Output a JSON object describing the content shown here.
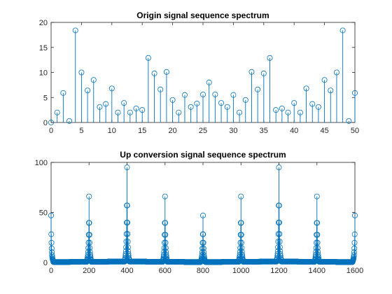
{
  "chart_data": [
    {
      "type": "stem",
      "title": "Origin signal sequence spectrum",
      "xlabel": "",
      "ylabel": "",
      "xlim": [
        0,
        50
      ],
      "ylim": [
        0,
        20
      ],
      "xticks": [
        0,
        5,
        10,
        15,
        20,
        25,
        30,
        35,
        40,
        45,
        50
      ],
      "yticks": [
        0,
        5,
        10,
        15,
        20
      ],
      "grid": false,
      "color": "#0072BD",
      "x": [
        0,
        1,
        2,
        3,
        4,
        5,
        6,
        7,
        8,
        9,
        10,
        11,
        12,
        13,
        14,
        15,
        16,
        17,
        18,
        19,
        20,
        21,
        22,
        23,
        24,
        25,
        26,
        27,
        28,
        29,
        30,
        31,
        32,
        33,
        34,
        35,
        36,
        37,
        38,
        39,
        40,
        41,
        42,
        43,
        44,
        45,
        46,
        47,
        48,
        49,
        50
      ],
      "values": [
        0,
        2.0,
        5.9,
        0.3,
        18.4,
        10.0,
        6.4,
        8.5,
        3.1,
        3.7,
        6.8,
        2.0,
        3.9,
        2.0,
        2.8,
        2.5,
        12.9,
        9.8,
        6.6,
        10.1,
        4.5,
        2.0,
        5.5,
        3.1,
        3.8,
        5.6,
        8.0,
        5.6,
        3.9,
        3.1,
        5.5,
        2.0,
        4.5,
        10.1,
        6.6,
        9.8,
        12.9,
        2.5,
        2.8,
        2.0,
        3.9,
        2.0,
        6.8,
        3.7,
        3.1,
        8.5,
        6.4,
        10.0,
        18.4,
        0.3,
        5.9
      ]
    },
    {
      "type": "stem",
      "title": "Up conversion signal sequence spectrum",
      "xlabel": "",
      "ylabel": "",
      "xlim": [
        0,
        1600
      ],
      "ylim": [
        0,
        100
      ],
      "xticks": [
        0,
        200,
        400,
        600,
        800,
        1000,
        1200,
        1400,
        1600
      ],
      "yticks": [
        0,
        50,
        100
      ],
      "grid": false,
      "color": "#0072BD",
      "peaks": [
        {
          "x": 400,
          "value": 95
        },
        {
          "x": 1200,
          "value": 95
        },
        {
          "x": 200,
          "value": 66
        },
        {
          "x": 1000,
          "value": 66
        },
        {
          "x": 600,
          "value": 66
        },
        {
          "x": 1400,
          "value": 66
        },
        {
          "x": 0,
          "value": 47
        },
        {
          "x": 800,
          "value": 47
        },
        {
          "x": 1600,
          "value": 47
        }
      ]
    }
  ]
}
